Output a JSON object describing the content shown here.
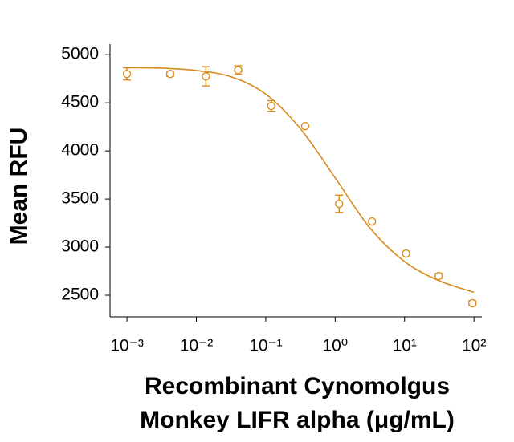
{
  "chart_data": {
    "type": "scatter",
    "color": "#d88c20",
    "xlabel": [
      "Recombinant Cynomolgus",
      "Monkey LIFR alpha (μg/mL)"
    ],
    "ylabel": "Mean RFU",
    "xscale": "log",
    "xlim": [
      0.00057,
      130
    ],
    "ylim": [
      2275,
      5110
    ],
    "xticks": [
      {
        "value": 0.001,
        "label": "10⁻³"
      },
      {
        "value": 0.01,
        "label": "10⁻²"
      },
      {
        "value": 0.1,
        "label": "10⁻¹"
      },
      {
        "value": 1,
        "label": "10⁰"
      },
      {
        "value": 10,
        "label": "10¹"
      },
      {
        "value": 100,
        "label": "10²"
      }
    ],
    "yticks": [
      2500,
      3000,
      3500,
      4000,
      4500,
      5000
    ],
    "points": {
      "x": [
        0.001,
        0.0042,
        0.0137,
        0.04,
        0.12,
        0.37,
        1.14,
        3.4,
        10.5,
        31,
        95
      ],
      "values": [
        4800,
        4800,
        4775,
        4840,
        4467,
        4258,
        3450,
        3267,
        2933,
        2700,
        2417
      ],
      "errors": [
        63,
        25,
        100,
        45,
        55,
        null,
        90,
        null,
        null,
        25,
        25
      ]
    },
    "fit": {
      "x": [
        0.001,
        0.00316,
        0.01,
        0.0316,
        0.1,
        0.316,
        1,
        3.16,
        10,
        31.6,
        100
      ],
      "values": [
        4865,
        4860,
        4835,
        4770,
        4590,
        4230,
        3720,
        3200,
        2850,
        2650,
        2530
      ]
    }
  }
}
